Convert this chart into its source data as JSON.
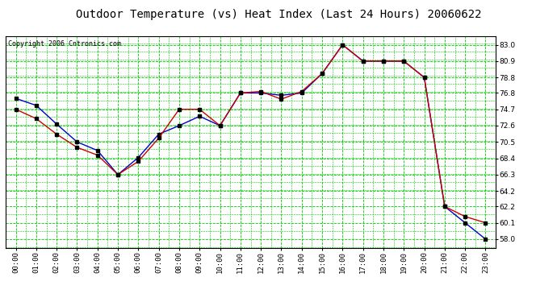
{
  "title": "Outdoor Temperature (vs) Heat Index (Last 24 Hours) 20060622",
  "copyright": "Copyright 2006 Cntronics.com",
  "hours": [
    "00:00",
    "01:00",
    "02:00",
    "03:00",
    "04:00",
    "05:00",
    "06:00",
    "07:00",
    "08:00",
    "09:00",
    "10:00",
    "11:00",
    "12:00",
    "13:00",
    "14:00",
    "15:00",
    "16:00",
    "17:00",
    "18:00",
    "19:00",
    "20:00",
    "21:00",
    "22:00",
    "23:00"
  ],
  "temp": [
    76.1,
    75.2,
    72.8,
    70.5,
    69.4,
    66.3,
    68.5,
    71.5,
    72.6,
    73.8,
    72.6,
    76.8,
    76.8,
    76.5,
    76.8,
    79.3,
    83.0,
    80.9,
    80.9,
    80.9,
    78.8,
    62.2,
    60.1,
    58.0
  ],
  "heat_index": [
    74.7,
    73.5,
    71.5,
    69.8,
    68.8,
    66.3,
    68.0,
    71.0,
    74.7,
    74.7,
    72.6,
    76.8,
    77.0,
    76.0,
    77.0,
    79.3,
    83.0,
    80.9,
    80.9,
    80.9,
    78.8,
    62.2,
    60.9,
    60.1
  ],
  "ylim_min": 56.9,
  "ylim_max": 84.1,
  "yticks": [
    58.0,
    60.1,
    62.2,
    64.2,
    66.3,
    68.4,
    70.5,
    72.6,
    74.7,
    76.8,
    78.8,
    80.9,
    83.0
  ],
  "bg_color": "#ffffff",
  "plot_bg_color": "#ffffff",
  "grid_color": "#00cc00",
  "temp_color": "#0000cc",
  "heat_color": "#cc0000",
  "marker_color": "#000000",
  "title_fontsize": 10,
  "tick_fontsize": 6.5,
  "copyright_fontsize": 6
}
